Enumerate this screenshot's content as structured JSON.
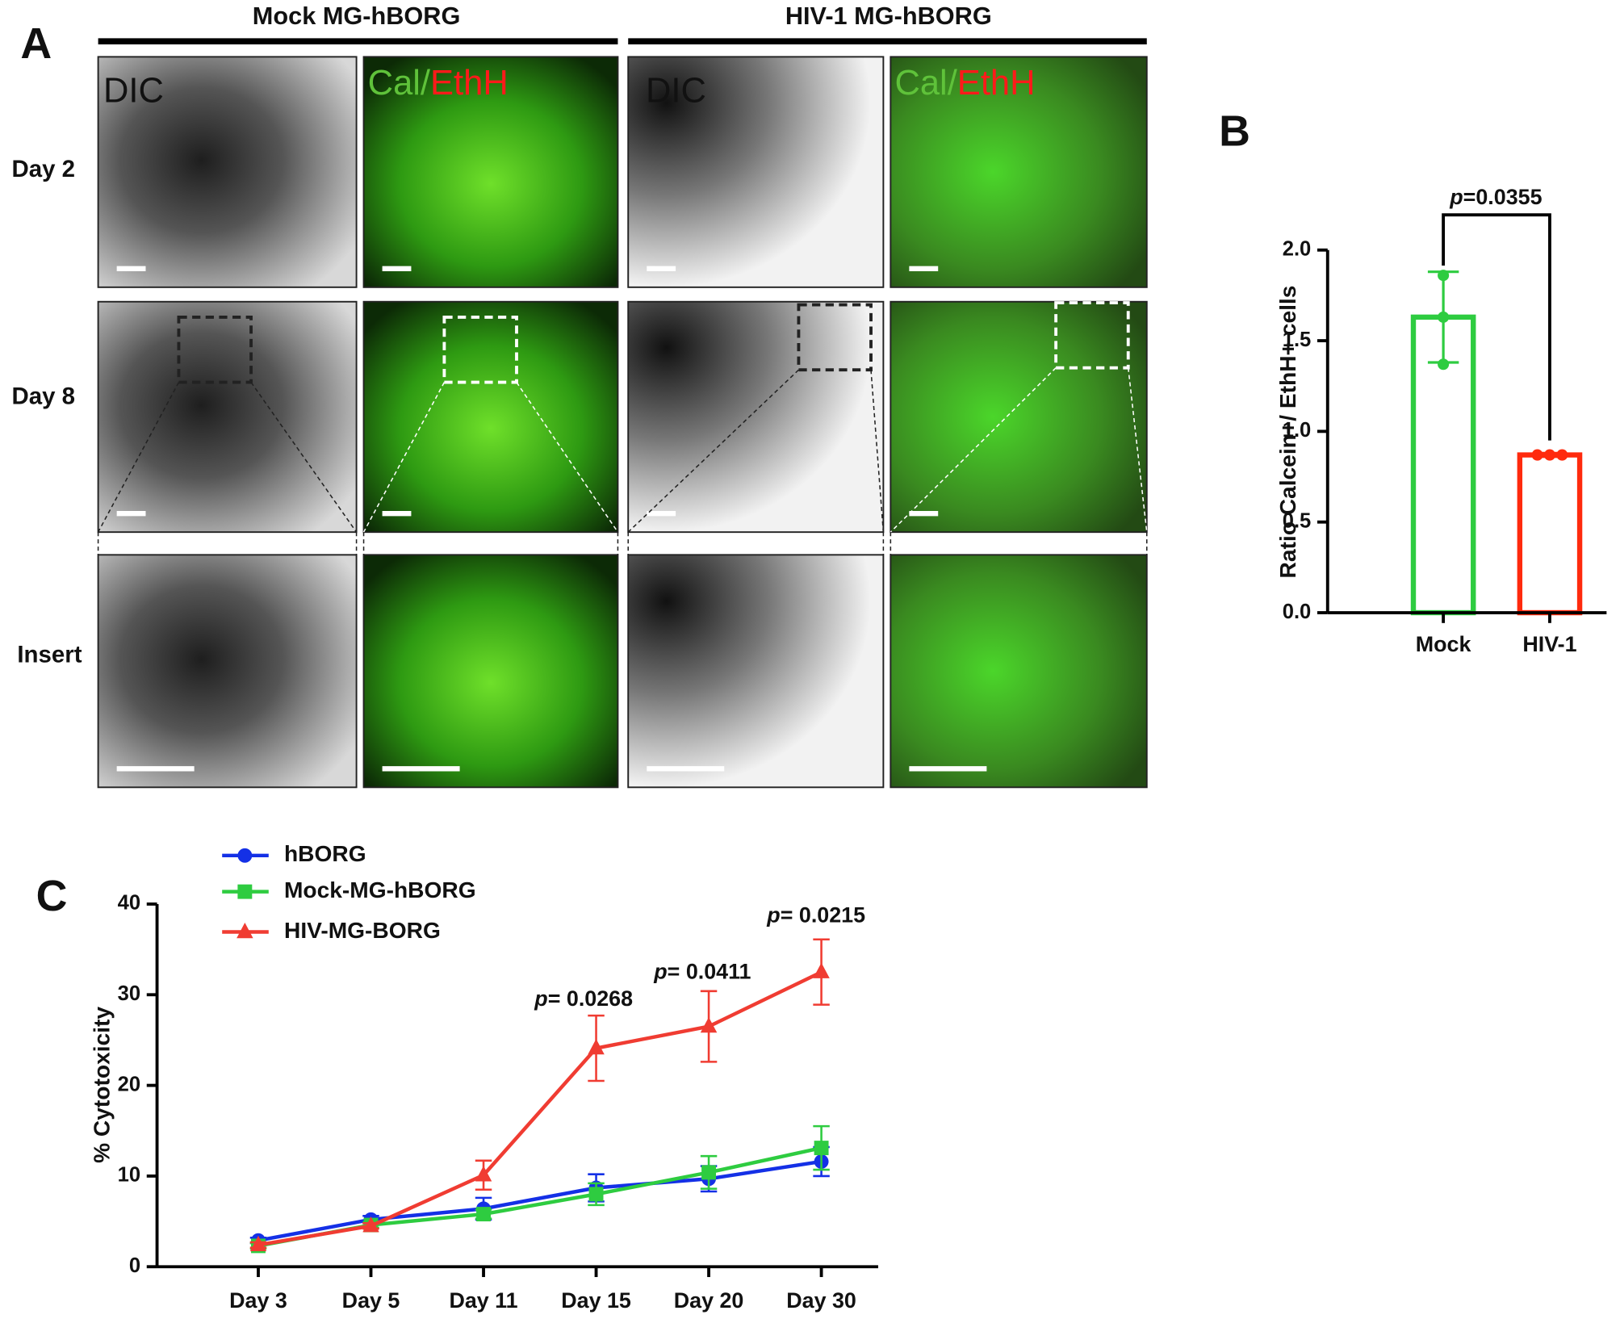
{
  "panel_a": {
    "letter": "A",
    "groups": [
      "Mock MG-hBORG",
      "HIV-1 MG-hBORG"
    ],
    "rows": [
      "Day 2",
      "Day 8",
      "Insert"
    ],
    "channel_labels": [
      [
        "DIC"
      ],
      [
        "Cal/",
        "EthH"
      ],
      [
        "DIC"
      ],
      [
        "Cal/",
        "EthH"
      ]
    ]
  },
  "chart_data": [
    {
      "type": "bar",
      "letter": "B",
      "ylabel": "Ratio Calcein+/ EthH+ cells",
      "categories": [
        "Mock",
        "HIV-1"
      ],
      "values": [
        1.63,
        0.87
      ],
      "errors": [
        0.25,
        0.01
      ],
      "points": [
        [
          1.86,
          1.63,
          1.37
        ],
        [
          0.87,
          0.87,
          0.87
        ]
      ],
      "colors": [
        "#2ecc40",
        "#ff2a0d"
      ],
      "ylim": [
        0,
        2.0
      ],
      "yticks": [
        {
          "value": 0,
          "label": "0.0"
        },
        0.5,
        {
          "value": 1,
          "label": "1.0"
        },
        1.5,
        {
          "value": 2,
          "label": "2.0"
        }
      ],
      "annotation": {
        "prefix": "p",
        "text": "=0.0355"
      }
    },
    {
      "type": "line",
      "letter": "C",
      "ylabel": "% Cytotoxicity",
      "categories": [
        "Day 3",
        "Day 5",
        "Day 11",
        "Day 15",
        "Day 20",
        "Day 30"
      ],
      "series": [
        {
          "name": "hBORG",
          "color": "#1430e6",
          "marker": "circle",
          "values": [
            2.9,
            5.2,
            6.4,
            8.7,
            9.7,
            11.6
          ],
          "errors": [
            0.3,
            0.4,
            1.2,
            1.5,
            1.4,
            1.6
          ]
        },
        {
          "name": "Mock-MG-hBORG",
          "color": "#2ecc40",
          "marker": "square",
          "values": [
            2.3,
            4.6,
            5.8,
            8.0,
            10.4,
            13.1
          ],
          "errors": [
            0.3,
            0.3,
            0.5,
            1.2,
            1.8,
            2.4
          ]
        },
        {
          "name": "HIV-MG-BORG",
          "color": "#f03c32",
          "marker": "triangle",
          "values": [
            2.4,
            4.5,
            10.1,
            24.1,
            26.5,
            32.5
          ],
          "errors": [
            0.3,
            0.3,
            1.6,
            3.6,
            3.9,
            3.6
          ]
        }
      ],
      "ylim": [
        0,
        40
      ],
      "yticks": [
        0,
        10,
        20,
        30,
        40
      ],
      "annotations": [
        {
          "prefix": "p",
          "text": "= 0.0268"
        },
        {
          "prefix": "p",
          "text": "= 0.0411"
        },
        {
          "prefix": "p",
          "text": "= 0.0215"
        }
      ]
    }
  ]
}
